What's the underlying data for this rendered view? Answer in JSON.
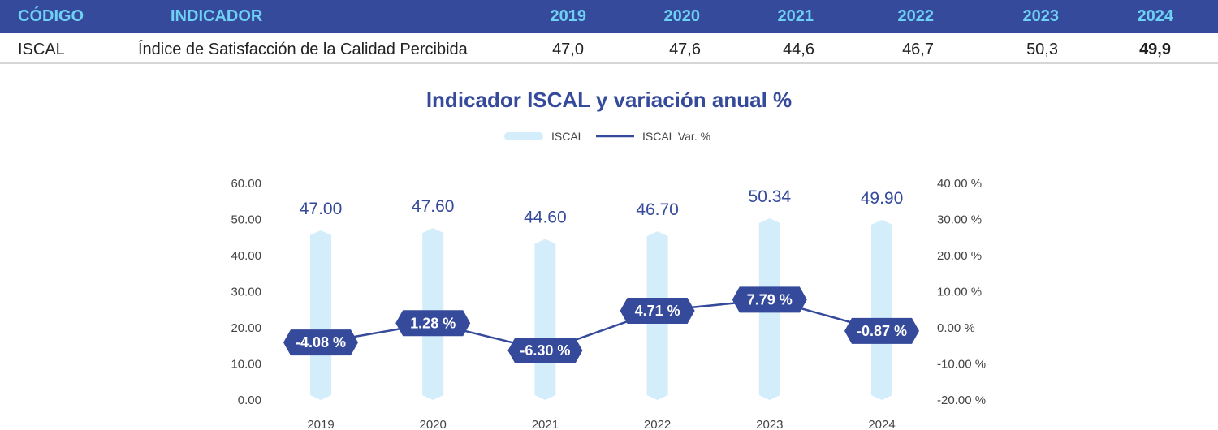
{
  "table": {
    "headers": [
      "CÓDIGO",
      "INDICADOR",
      "2019",
      "2020",
      "2021",
      "2022",
      "2023",
      "2024"
    ],
    "row": [
      "ISCAL",
      "Índice de Satisfacción de la Calidad Percibida",
      "47,0",
      "47,6",
      "44,6",
      "46,7",
      "50,3",
      "49,9"
    ]
  },
  "colors": {
    "header_bg": "#354a9a",
    "header_text": "#6fd0f5",
    "bar": "#d3edfb",
    "line": "#354a9a",
    "label_bg": "#354a9a"
  },
  "chart_data": {
    "type": "bar",
    "title": "Indicador ISCAL y variación anual %",
    "categories": [
      "2019",
      "2020",
      "2021",
      "2022",
      "2023",
      "2024"
    ],
    "series": [
      {
        "name": "ISCAL",
        "type": "bar",
        "axis": "left",
        "values": [
          47.0,
          47.6,
          44.6,
          46.7,
          50.34,
          49.9
        ],
        "labels": [
          "47.00",
          "47.60",
          "44.60",
          "46.70",
          "50.34",
          "49.90"
        ]
      },
      {
        "name": "ISCAL Var. %",
        "type": "line",
        "axis": "right",
        "values": [
          -4.08,
          1.28,
          -6.3,
          4.71,
          7.79,
          -0.87
        ],
        "labels": [
          "-4.08 %",
          "1.28 %",
          "-6.30 %",
          "4.71 %",
          "7.79 %",
          "-0.87 %"
        ]
      }
    ],
    "y_left": {
      "min": 0,
      "max": 60,
      "ticks": [
        "60.00",
        "50.00",
        "40.00",
        "30.00",
        "20.00",
        "10.00",
        "0.00"
      ]
    },
    "y_right": {
      "min": -20,
      "max": 40,
      "ticks": [
        "40.00 %",
        "30.00 %",
        "20.00 %",
        "10.00 %",
        "0.00 %",
        "-10.00 %",
        "-20.00 %"
      ]
    },
    "legend_position": "top",
    "grid": false
  }
}
